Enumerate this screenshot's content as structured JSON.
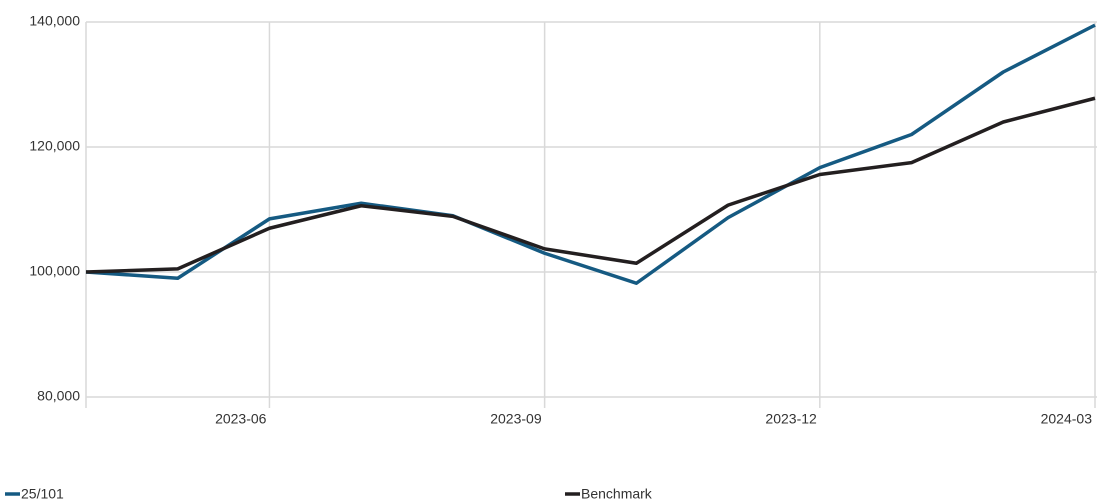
{
  "chart_data": {
    "type": "line",
    "x": [
      "2023-04",
      "2023-05",
      "2023-06",
      "2023-07",
      "2023-08",
      "2023-09",
      "2023-10",
      "2023-11",
      "2023-12",
      "2024-01",
      "2024-02",
      "2024-03"
    ],
    "series": [
      {
        "name": "25/101",
        "color": "#155a82",
        "values": [
          100000,
          99000,
          108500,
          111000,
          109000,
          103000,
          98200,
          108700,
          116700,
          122000,
          132000,
          139500
        ]
      },
      {
        "name": "Benchmark",
        "color": "#231f20",
        "values": [
          100000,
          100500,
          107000,
          110600,
          108900,
          103700,
          101400,
          110700,
          115600,
          117500,
          124000,
          127800
        ]
      }
    ],
    "xticks": [
      "2023-06",
      "2023-09",
      "2023-12",
      "2024-03"
    ],
    "ylim": [
      80000,
      140000
    ],
    "yticks": [
      {
        "value": 80000,
        "label": "80,000"
      },
      {
        "value": 100000,
        "label": "100,000"
      },
      {
        "value": 120000,
        "label": "120,000"
      },
      {
        "value": 140000,
        "label": "140,000"
      }
    ],
    "grid": true
  }
}
